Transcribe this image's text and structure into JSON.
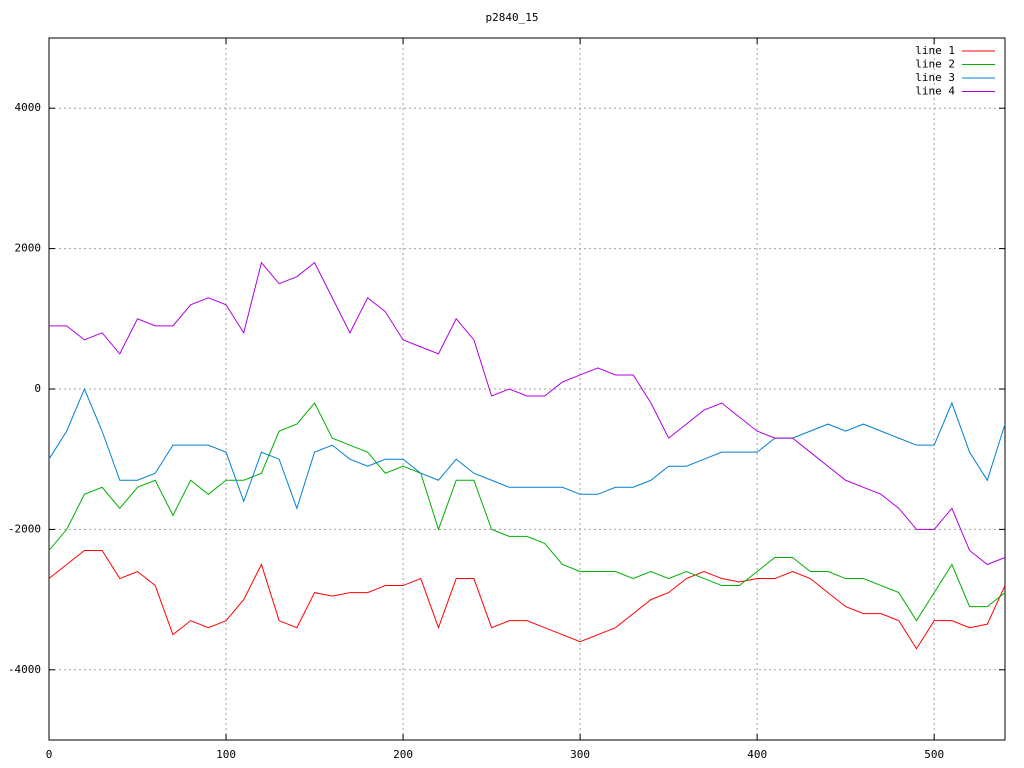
{
  "chart_data": {
    "type": "line",
    "title": "p2840_15",
    "x": [
      0,
      10,
      20,
      30,
      40,
      50,
      60,
      70,
      80,
      90,
      100,
      110,
      120,
      130,
      140,
      150,
      160,
      170,
      180,
      190,
      200,
      210,
      220,
      230,
      240,
      250,
      260,
      270,
      280,
      290,
      300,
      310,
      320,
      330,
      340,
      350,
      360,
      370,
      380,
      390,
      400,
      410,
      420,
      430,
      440,
      450,
      460,
      470,
      480,
      490,
      500,
      510,
      520,
      530,
      540
    ],
    "series": [
      {
        "name": "line 1",
        "color": "#ff0000",
        "values": [
          -2700,
          -2500,
          -2300,
          -2300,
          -2700,
          -2600,
          -2800,
          -3500,
          -3300,
          -3400,
          -3300,
          -3000,
          -2500,
          -3300,
          -3400,
          -2900,
          -2950,
          -2900,
          -2900,
          -2800,
          -2800,
          -2700,
          -3400,
          -2700,
          -2700,
          -3400,
          -3300,
          -3300,
          -3400,
          -3500,
          -3600,
          -3500,
          -3400,
          -3200,
          -3000,
          -2900,
          -2700,
          -2600,
          -2700,
          -2750,
          -2700,
          -2700,
          -2600,
          -2700,
          -2900,
          -3100,
          -3200,
          -3200,
          -3300,
          -3700,
          -3300,
          -3300,
          -3400,
          -3350,
          -2800
        ]
      },
      {
        "name": "line 2",
        "color": "#00b000",
        "values": [
          -2300,
          -2000,
          -1500,
          -1400,
          -1700,
          -1400,
          -1300,
          -1800,
          -1300,
          -1500,
          -1300,
          -1300,
          -1200,
          -600,
          -500,
          -200,
          -700,
          -800,
          -900,
          -1200,
          -1100,
          -1200,
          -2000,
          -1300,
          -1300,
          -2000,
          -2100,
          -2100,
          -2200,
          -2500,
          -2600,
          -2600,
          -2600,
          -2700,
          -2600,
          -2700,
          -2600,
          -2700,
          -2800,
          -2800,
          -2600,
          -2400,
          -2400,
          -2600,
          -2600,
          -2700,
          -2700,
          -2800,
          -2900,
          -3300,
          -2900,
          -2500,
          -3100,
          -3100,
          -2900
        ]
      },
      {
        "name": "line 3",
        "color": "#0080d0",
        "values": [
          -1000,
          -600,
          0,
          -600,
          -1300,
          -1300,
          -1200,
          -800,
          -800,
          -800,
          -900,
          -1600,
          -900,
          -1000,
          -1700,
          -900,
          -800,
          -1000,
          -1100,
          -1000,
          -1000,
          -1200,
          -1300,
          -1000,
          -1200,
          -1300,
          -1400,
          -1400,
          -1400,
          -1400,
          -1500,
          -1500,
          -1400,
          -1400,
          -1300,
          -1100,
          -1100,
          -1000,
          -900,
          -900,
          -900,
          -700,
          -700,
          -600,
          -500,
          -600,
          -500,
          -600,
          -700,
          -800,
          -800,
          -200,
          -900,
          -1300,
          -500
        ]
      },
      {
        "name": "line 4",
        "color": "#b000e0",
        "values": [
          900,
          900,
          700,
          800,
          500,
          1000,
          900,
          900,
          1200,
          1300,
          1200,
          800,
          1800,
          1500,
          1600,
          1800,
          1300,
          800,
          1300,
          1100,
          700,
          600,
          500,
          1000,
          700,
          -100,
          0,
          -100,
          -100,
          100,
          200,
          300,
          200,
          200,
          -200,
          -700,
          -500,
          -300,
          -200,
          -400,
          -600,
          -700,
          -700,
          -900,
          -1100,
          -1300,
          -1400,
          -1500,
          -1700,
          -2000,
          -2000,
          -1700,
          -2300,
          -2500,
          -2400
        ]
      }
    ],
    "xlim": [
      0,
      540
    ],
    "ylim": [
      -5000,
      5000
    ],
    "xticks": [
      0,
      100,
      200,
      300,
      400,
      500
    ],
    "yticks": [
      -4000,
      -2000,
      0,
      2000,
      4000
    ],
    "grid": true,
    "legend": "top-right"
  }
}
